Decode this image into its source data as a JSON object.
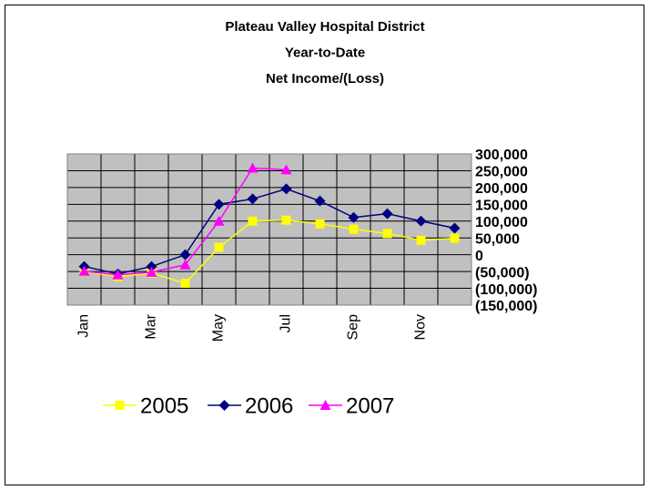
{
  "chart_data": {
    "type": "line",
    "title": [
      "Plateau Valley Hospital District",
      "Year-to-Date",
      "Net Income/(Loss)"
    ],
    "categories": [
      "Jan",
      null,
      "Mar",
      null,
      "May",
      null,
      "Jul",
      null,
      "Sep",
      null,
      "Nov",
      null
    ],
    "series": [
      {
        "name": "2005",
        "color": "#ffff00",
        "marker": "square",
        "values": [
          -50000,
          -65000,
          -55000,
          -85000,
          22000,
          100000,
          103000,
          92000,
          76000,
          63000,
          43000,
          49000
        ]
      },
      {
        "name": "2006",
        "color": "#000080",
        "marker": "diamond",
        "values": [
          -35000,
          -57000,
          -35000,
          0,
          150000,
          166000,
          196000,
          160000,
          111000,
          122000,
          100000,
          79000
        ]
      },
      {
        "name": "2007",
        "color": "#ff00ff",
        "marker": "triangle",
        "values": [
          -49000,
          -60000,
          -52000,
          -30000,
          100000,
          258000,
          253000,
          null,
          null,
          null,
          null,
          null
        ]
      }
    ],
    "ylim": [
      -150000,
      300000
    ],
    "yticks": [
      {
        "value": 300000,
        "label": "300,000"
      },
      {
        "value": 250000,
        "label": "250,000"
      },
      {
        "value": 200000,
        "label": "200,000"
      },
      {
        "value": 150000,
        "label": "150,000"
      },
      {
        "value": 100000,
        "label": "100,000"
      },
      {
        "value": 50000,
        "label": "50,000"
      },
      0,
      {
        "value": -50000,
        "label": "(50,000)"
      },
      {
        "value": -100000,
        "label": "(100,000)"
      },
      {
        "value": -150000,
        "label": "(150,000)"
      }
    ],
    "grid": true,
    "y_axis_side": "right",
    "legend": "bottom"
  }
}
